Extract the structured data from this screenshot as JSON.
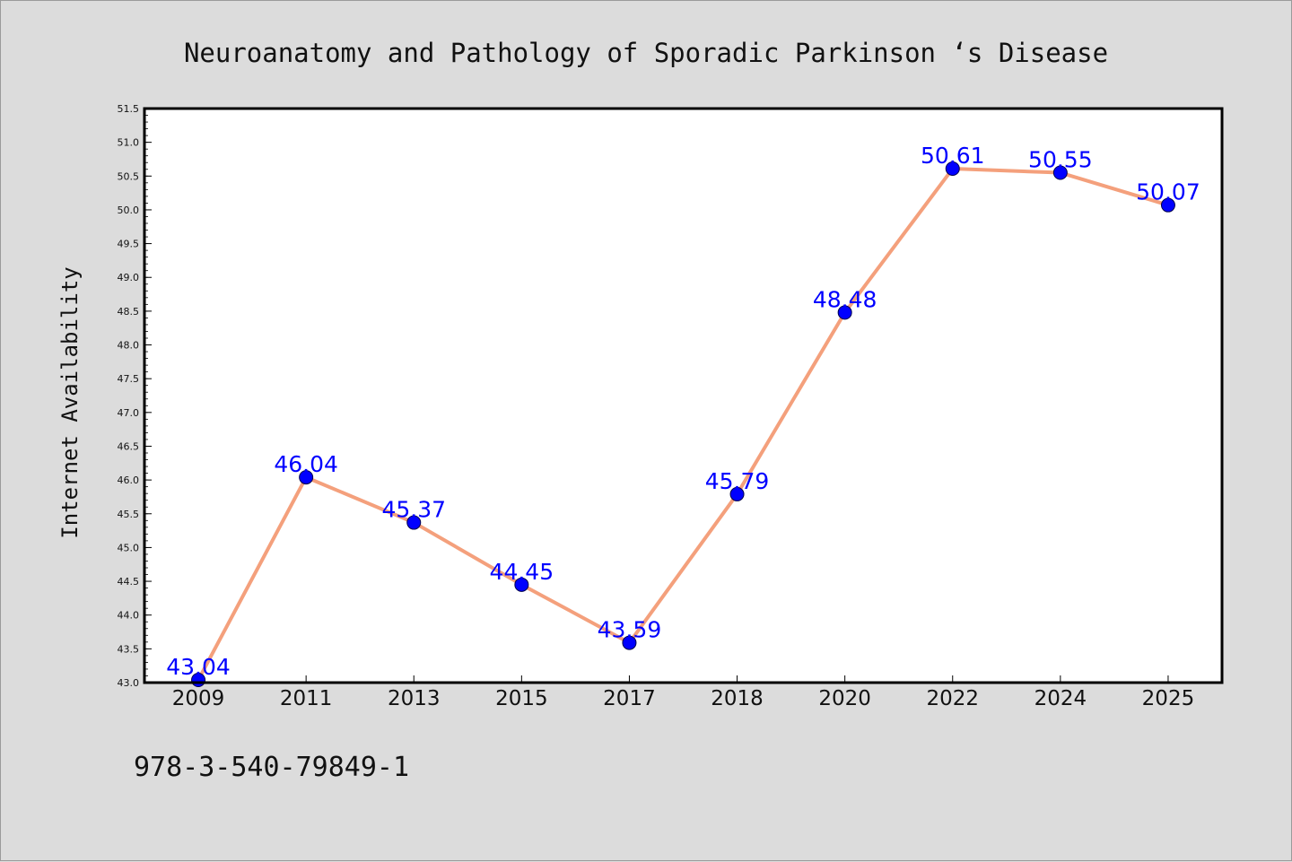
{
  "chart_data": {
    "type": "line",
    "title": "Neuroanatomy and Pathology of Sporadic Parkinson ‘s Disease",
    "xlabel": "",
    "ylabel": "Internet Availability",
    "categories": [
      "2009",
      "2011",
      "2013",
      "2015",
      "2017",
      "2018",
      "2020",
      "2022",
      "2024",
      "2025"
    ],
    "series": [
      {
        "values": [
          43.04,
          46.04,
          45.37,
          44.45,
          43.59,
          45.79,
          48.48,
          50.61,
          50.55,
          50.07
        ],
        "labels": [
          "43.04",
          "46.04",
          "45.37",
          "44.45",
          "43.59",
          "45.79",
          "48.48",
          "50.61",
          "50.55",
          "50.07"
        ],
        "line_color": "#f4a07c",
        "marker_color": "#0000ff"
      }
    ],
    "ylim": [
      43.0,
      51.5
    ],
    "yticks": [
      "43.0",
      "43.5",
      "44.0",
      "44.5",
      "45.0",
      "45.5",
      "46.0",
      "46.5",
      "47.0",
      "47.5",
      "48.0",
      "48.5",
      "49.0",
      "49.5",
      "50.0",
      "50.5",
      "51.0",
      "51.5"
    ],
    "grid": false,
    "legend": "none"
  },
  "footnote": "978-3-540-79849-1",
  "colors": {
    "background": "#dcdcdc",
    "plot_background": "#ffffff",
    "line": "#f4a07c",
    "marker": "#0000ff",
    "data_label": "#0000ff"
  }
}
